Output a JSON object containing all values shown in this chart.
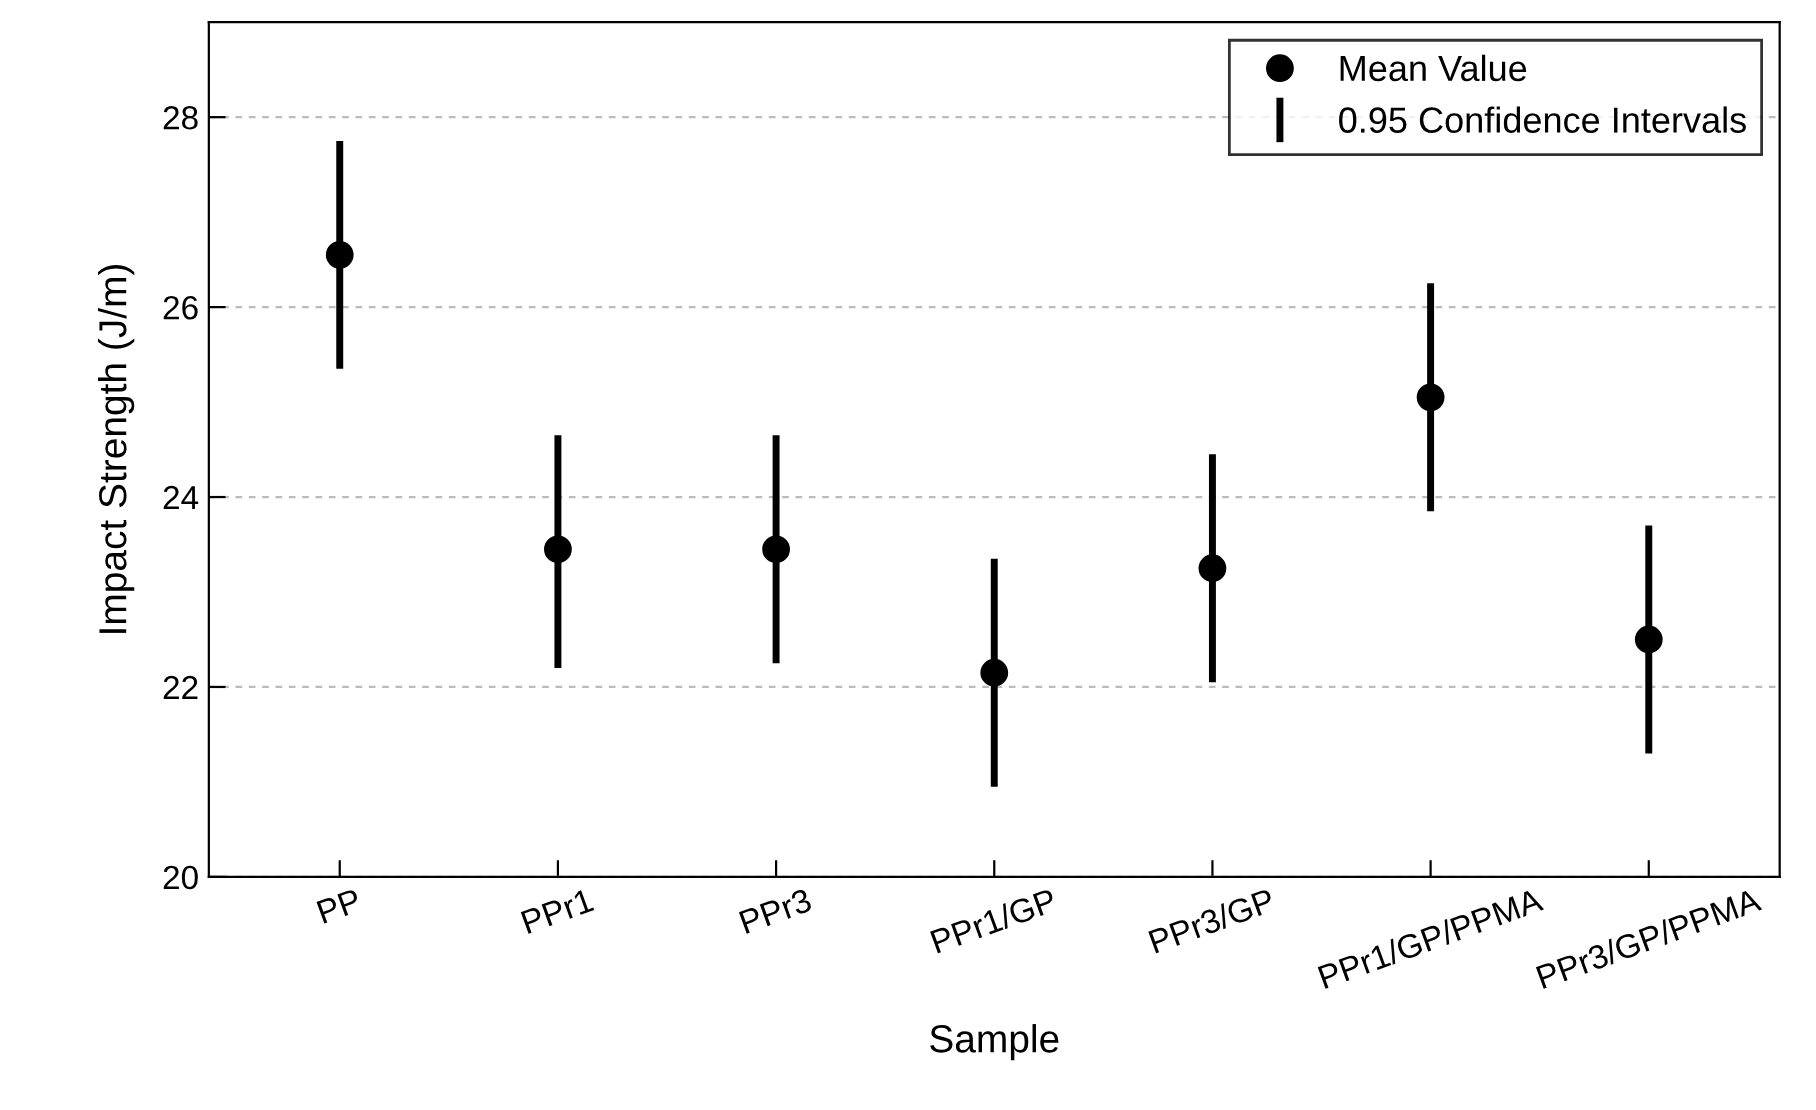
{
  "chart_data": {
    "type": "scatter",
    "xlabel": "Sample",
    "ylabel": "Impact Strength (J/m)",
    "categories": [
      "PP",
      "PPr1",
      "PPr3",
      "PPr1/GP",
      "PPr3/GP",
      "PPr1/GP/PPMA",
      "PPr3/GP/PPMA"
    ],
    "series": [
      {
        "name": "Mean Value",
        "color": "#000000",
        "values": [
          26.55,
          23.45,
          23.45,
          22.15,
          23.25,
          25.05,
          22.5
        ],
        "errors": [
          [
            25.35,
            27.75
          ],
          [
            22.2,
            24.65
          ],
          [
            22.25,
            24.65
          ],
          [
            20.95,
            23.35
          ],
          [
            22.05,
            24.45
          ],
          [
            23.85,
            26.25
          ],
          [
            21.3,
            23.7
          ]
        ]
      }
    ],
    "annotations": [
      "0.95 Confidence Intervals"
    ],
    "ylim": [
      20,
      29
    ],
    "yticks": [
      20,
      22,
      24,
      26,
      28
    ],
    "grid": "y",
    "legend": "top right",
    "marker": "circle"
  }
}
